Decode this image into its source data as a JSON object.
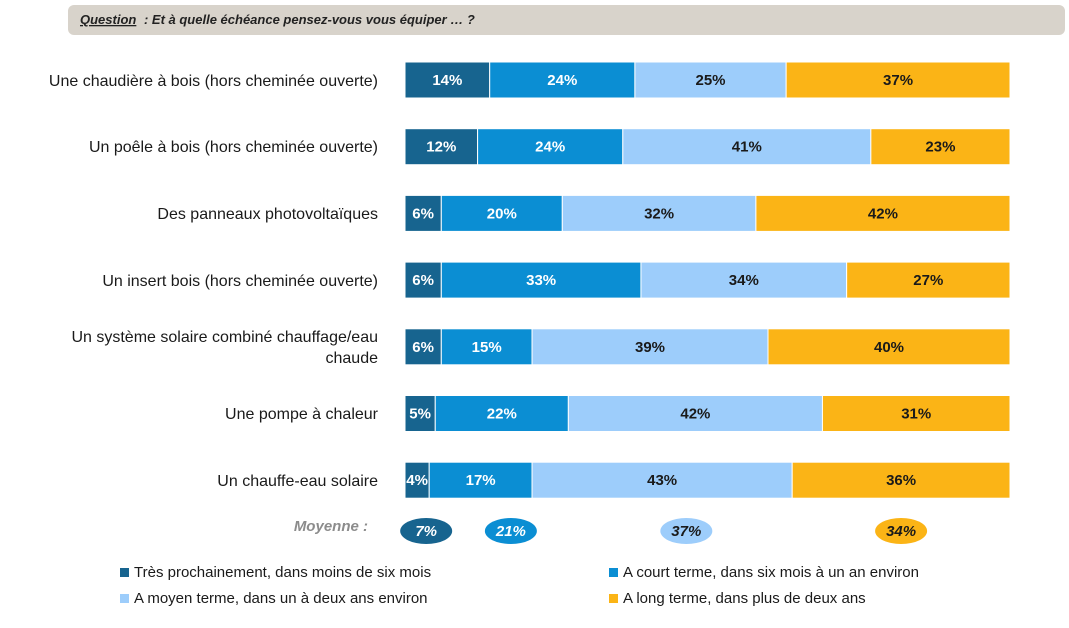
{
  "chart_data": {
    "type": "stacked_bar_horizontal",
    "question_label": "Question",
    "question_text": ": Et à quelle échéance pensez-vous vous équiper … ?",
    "mean_title": "Moyenne :",
    "xlim": [
      0,
      100
    ],
    "categories": [
      "Une chaudière à bois (hors cheminée ouverte)",
      "Un poêle à bois (hors cheminée ouverte)",
      "Des panneaux photovoltaïques",
      "Un insert bois (hors cheminée ouverte)",
      "Un système solaire combiné chauffage/eau chaude",
      "Une pompe à chaleur",
      "Un chauffe-eau solaire"
    ],
    "series": [
      {
        "name": "Très prochainement, dans moins de six mois",
        "color": "#17648f",
        "text_color": "#ffffff",
        "values": [
          14,
          12,
          6,
          6,
          6,
          5,
          4
        ],
        "value_labels": [
          "14%",
          "12%",
          "6%",
          "6%",
          "6%",
          "5%",
          "4%"
        ],
        "mean": 7,
        "mean_label": "7%"
      },
      {
        "name": "A court terme, dans six mois à un an environ",
        "color": "#0b8ed3",
        "text_color": "#ffffff",
        "values": [
          24,
          24,
          20,
          33,
          15,
          22,
          17
        ],
        "value_labels": [
          "24%",
          "24%",
          "20%",
          "33%",
          "15%",
          "22%",
          "17%"
        ],
        "mean": 21,
        "mean_label": "21%"
      },
      {
        "name": "A moyen terme, dans un à deux ans environ",
        "color": "#9dcdfb",
        "text_color": "#1a1a1a",
        "values": [
          25,
          41,
          32,
          34,
          39,
          42,
          43
        ],
        "value_labels": [
          "25%",
          "41%",
          "32%",
          "34%",
          "39%",
          "42%",
          "43%"
        ],
        "mean": 37,
        "mean_label": "37%"
      },
      {
        "name": "A long terme, dans plus de deux ans",
        "color": "#fbb416",
        "text_color": "#1a1a1a",
        "values": [
          37,
          23,
          42,
          27,
          40,
          31,
          36
        ],
        "value_labels": [
          "37%",
          "23%",
          "42%",
          "27%",
          "40%",
          "31%",
          "36%"
        ],
        "mean": 34,
        "mean_label": "34%"
      }
    ]
  }
}
